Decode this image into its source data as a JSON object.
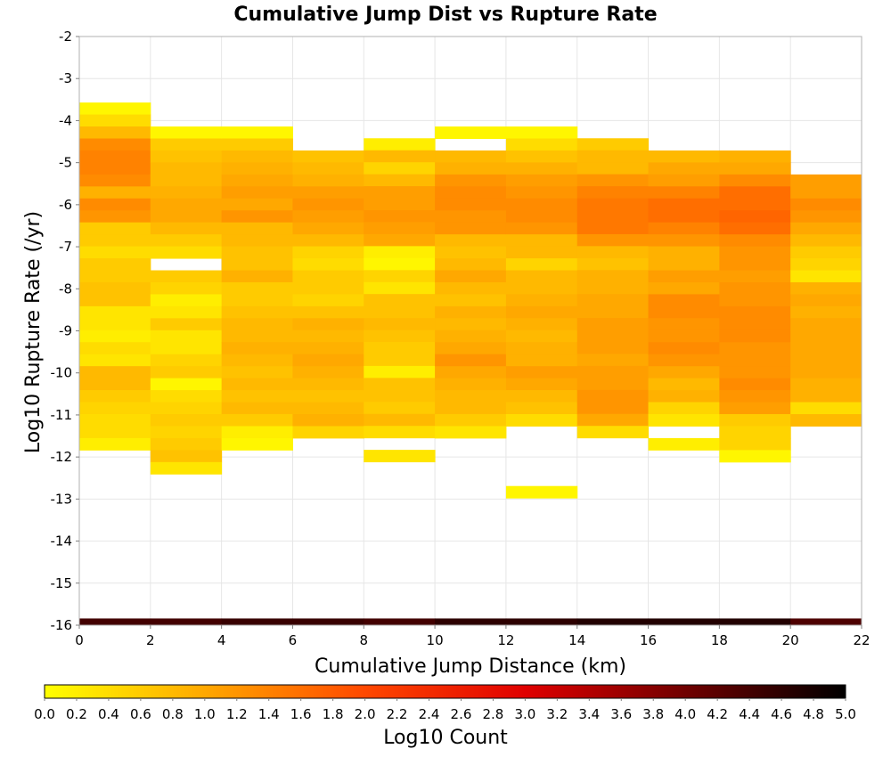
{
  "chart_data": {
    "type": "heatmap",
    "title": "Cumulative Jump Dist vs Rupture Rate",
    "xlabel": "Cumulative Jump Distance (km)",
    "ylabel": "Log10 Rupture Rate (/yr)",
    "colorbar_label": "Log10 Count",
    "xlim": [
      0,
      22
    ],
    "ylim": [
      -16,
      -2
    ],
    "x_ticks": [
      0,
      2,
      4,
      6,
      8,
      10,
      12,
      14,
      16,
      18,
      20,
      22
    ],
    "y_ticks": [
      -2,
      -3,
      -4,
      -5,
      -6,
      -7,
      -8,
      -9,
      -10,
      -11,
      -12,
      -13,
      -14,
      -15,
      -16
    ],
    "colorbar_range": [
      0,
      5
    ],
    "colorbar_ticks": [
      0.0,
      0.2,
      0.4,
      0.6,
      0.8,
      1.0,
      1.2,
      1.4,
      1.6,
      1.8,
      2.0,
      2.2,
      2.4,
      2.6,
      2.8,
      3.0,
      3.2,
      3.4,
      3.6,
      3.8,
      4.0,
      4.2,
      4.4,
      4.6,
      4.8,
      5.0
    ],
    "colormap": [
      "#ffff00",
      "#ffa800",
      "#ff4800",
      "#e00000",
      "#700000",
      "#000000"
    ],
    "grid": true,
    "x_bins": [
      0,
      2,
      4,
      6,
      8,
      10,
      12,
      14,
      16,
      18,
      20
    ],
    "y_bin_size": 0.285,
    "columns": [
      {
        "x": 0,
        "start": -3.57,
        "values": [
          0.1,
          0.4,
          0.8,
          1.3,
          1.4,
          1.4,
          1.3,
          0.9,
          1.3,
          1.2,
          0.6,
          0.6,
          0.4,
          0.6,
          0.6,
          0.7,
          0.7,
          0.3,
          0.3,
          0.2,
          0.4,
          0.3,
          0.8,
          0.8,
          0.6,
          0.5,
          0.4,
          0.4,
          0.2
        ]
      },
      {
        "x": 2,
        "start": -4.14,
        "values": [
          0.1,
          0.6,
          0.7,
          0.8,
          0.8,
          0.9,
          1.0,
          1.0,
          0.8,
          0.6,
          0.4,
          null,
          0.6,
          0.5,
          0.2,
          0.3,
          0.6,
          0.3,
          0.3,
          0.5,
          0.6,
          0.1,
          0.4,
          0.5,
          0.6,
          0.5,
          0.6,
          0.7,
          0.3
        ]
      },
      {
        "x": 4,
        "start": -4.14,
        "values": [
          0.1,
          0.6,
          0.8,
          0.9,
          1.0,
          1.1,
          1.0,
          1.2,
          0.8,
          0.8,
          0.7,
          0.7,
          0.9,
          0.6,
          0.6,
          0.7,
          0.8,
          0.8,
          0.9,
          0.8,
          0.7,
          0.8,
          0.7,
          0.8,
          0.6,
          0.2,
          0.1
        ]
      },
      {
        "x": 6,
        "start": -4.71,
        "values": [
          0.7,
          0.8,
          0.9,
          1.1,
          1.2,
          1.1,
          1.0,
          0.8,
          0.5,
          0.4,
          0.6,
          0.6,
          0.5,
          0.7,
          0.9,
          0.8,
          0.9,
          1.0,
          0.9,
          0.8,
          0.7,
          0.8,
          0.9,
          0.5
        ]
      },
      {
        "x": 8,
        "start": -4.42,
        "values": [
          0.2,
          0.8,
          0.5,
          0.8,
          1.1,
          1.1,
          1.2,
          1.1,
          1.0,
          0.2,
          0.1,
          0.5,
          0.3,
          0.7,
          0.7,
          0.8,
          0.7,
          0.6,
          0.6,
          0.2,
          0.7,
          0.7,
          0.6,
          0.8,
          0.4,
          null,
          0.3
        ]
      },
      {
        "x": 10,
        "start": -4.14,
        "values": [
          0.1,
          null,
          0.8,
          0.9,
          1.2,
          1.3,
          1.3,
          1.2,
          1.2,
          0.8,
          0.7,
          0.8,
          1.0,
          0.8,
          0.7,
          0.9,
          0.8,
          0.9,
          1.0,
          1.2,
          1.0,
          0.9,
          0.8,
          0.8,
          0.6,
          0.3
        ]
      },
      {
        "x": 12,
        "start": -4.14,
        "values": [
          0.1,
          0.4,
          0.7,
          0.9,
          1.1,
          1.2,
          1.3,
          1.3,
          1.2,
          0.8,
          0.8,
          0.5,
          0.8,
          0.8,
          0.9,
          1.0,
          0.9,
          0.8,
          0.9,
          0.9,
          1.1,
          1.0,
          0.8,
          0.7,
          0.4,
          null,
          null,
          null,
          null,
          null,
          0.1
        ]
      },
      {
        "x": 14,
        "start": -4.42,
        "values": [
          0.6,
          0.8,
          0.8,
          1.2,
          1.4,
          1.5,
          1.5,
          1.5,
          1.2,
          0.8,
          0.7,
          0.9,
          0.9,
          1.0,
          1.0,
          1.1,
          1.1,
          1.1,
          1.0,
          1.1,
          1.1,
          1.2,
          1.2,
          1.0,
          0.4
        ]
      },
      {
        "x": 16,
        "start": -4.71,
        "values": [
          0.8,
          1.0,
          1.1,
          1.4,
          1.6,
          1.6,
          1.4,
          1.2,
          0.9,
          0.9,
          1.1,
          1.0,
          1.3,
          1.3,
          1.2,
          1.2,
          1.3,
          1.2,
          1.0,
          0.8,
          0.9,
          0.5,
          0.3,
          null,
          0.2
        ]
      },
      {
        "x": 18,
        "start": -4.71,
        "values": [
          0.9,
          1.0,
          1.3,
          1.6,
          1.6,
          1.7,
          1.6,
          1.3,
          1.2,
          1.2,
          1.1,
          1.2,
          1.2,
          1.3,
          1.3,
          1.3,
          1.2,
          1.2,
          1.2,
          1.3,
          1.2,
          1.1,
          0.6,
          0.5,
          0.5,
          0.1
        ]
      },
      {
        "x": 20,
        "start": -5.28,
        "values": [
          1.1,
          1.1,
          1.3,
          1.2,
          1.0,
          0.8,
          0.6,
          0.5,
          0.3,
          0.9,
          1.0,
          0.9,
          1.0,
          1.0,
          1.0,
          1.0,
          1.0,
          0.9,
          0.9,
          0.4,
          0.8
        ]
      }
    ],
    "bottom_row": {
      "y": -16,
      "values": [
        4.4,
        4.4,
        4.5,
        4.5,
        4.4,
        4.6,
        4.6,
        4.7,
        4.7,
        4.7,
        4.3
      ]
    }
  }
}
